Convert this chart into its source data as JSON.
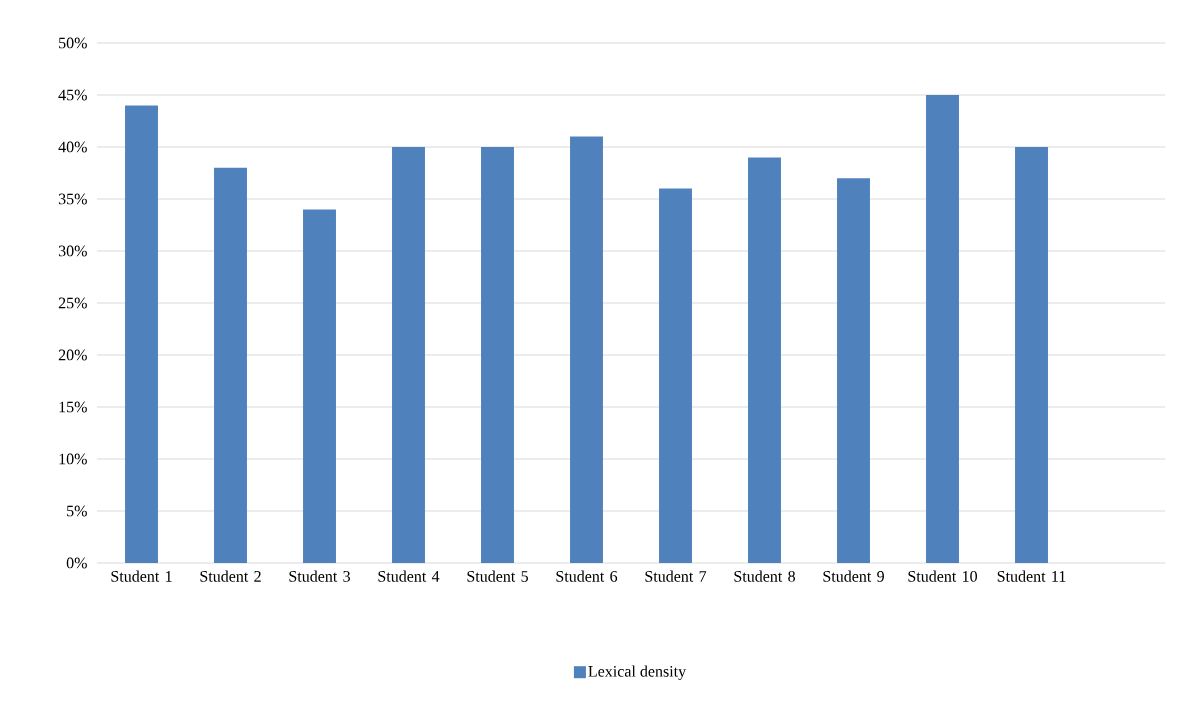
{
  "chart_data": {
    "type": "bar",
    "categories": [
      "Student 1",
      "Student 2",
      "Student 3",
      "Student 4",
      "Student 5",
      "Student 6",
      "Student 7",
      "Student 8",
      "Student 9",
      "Student 10",
      "Student 11",
      null
    ],
    "series": [
      {
        "name": "Lexical density",
        "color": "#4f81bd",
        "values": [
          44,
          38,
          34,
          40,
          40,
          41,
          36,
          39,
          37,
          45,
          40,
          null
        ]
      }
    ],
    "ylim": [
      0,
      50
    ],
    "yticks": [
      {
        "value": 0,
        "label": "0%"
      },
      {
        "value": 5,
        "label": "5%"
      },
      {
        "value": 10,
        "label": "10%"
      },
      {
        "value": 15,
        "label": "15%"
      },
      {
        "value": 20,
        "label": "20%"
      },
      {
        "value": 25,
        "label": "25%"
      },
      {
        "value": 30,
        "label": "30%"
      },
      {
        "value": 35,
        "label": "35%"
      },
      {
        "value": 40,
        "label": "40%"
      },
      {
        "value": 45,
        "label": "45%"
      },
      {
        "value": 50,
        "label": "50%"
      }
    ],
    "grid": "y",
    "legend": "bottom"
  }
}
